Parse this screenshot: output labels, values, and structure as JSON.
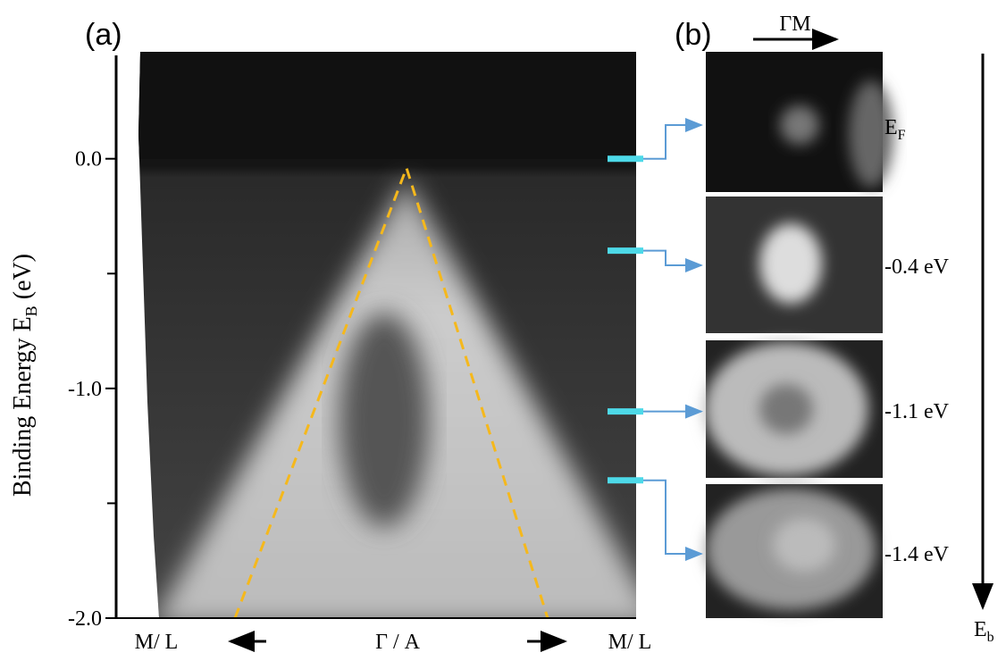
{
  "chart_data": {
    "type": "image",
    "panel_labels": [
      "(a)",
      "(b)"
    ],
    "ylabel": {
      "text": "Binding Energy  E",
      "sub": "B",
      "unit": " (eV)"
    },
    "ylim": [
      -2.0,
      0.45
    ],
    "yticks": [
      {
        "value": 0,
        "label": "0.0"
      },
      {
        "value": -1,
        "label": "-1.0"
      },
      {
        "value": -2,
        "label": "-2.0"
      }
    ],
    "minor_yticks": [
      -0.5,
      -1.5
    ],
    "x_labels": [
      "M/ L",
      "Γ / A",
      "M/ L"
    ],
    "panel_b_direction": "ΓM",
    "energy_cuts": {
      "values": [
        0,
        -0.4,
        -1.1,
        -1.4
      ],
      "labels": [
        {
          "text": "E",
          "sub": "F"
        },
        {
          "text": "-0.4 eV"
        },
        {
          "text": "-1.1 eV"
        },
        {
          "text": "-1.4 eV"
        }
      ],
      "color": "#4dd9e8"
    },
    "energy_axis_label": {
      "text": "E",
      "sub": "b"
    }
  }
}
